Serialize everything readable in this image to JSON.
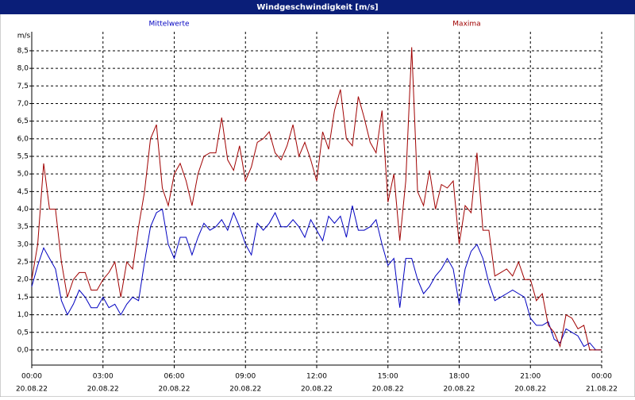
{
  "chart_data": {
    "type": "line",
    "title": "Windgeschwindigkeit [m/s]",
    "ylabel": "m/s",
    "x": [
      0,
      0.25,
      0.5,
      0.75,
      1,
      1.25,
      1.5,
      1.75,
      2,
      2.25,
      2.5,
      2.75,
      3,
      3.25,
      3.5,
      3.75,
      4,
      4.25,
      4.5,
      4.75,
      5,
      5.25,
      5.5,
      5.75,
      6,
      6.25,
      6.5,
      6.75,
      7,
      7.25,
      7.5,
      7.75,
      8,
      8.25,
      8.5,
      8.75,
      9,
      9.25,
      9.5,
      9.75,
      10,
      10.25,
      10.5,
      10.75,
      11,
      11.25,
      11.5,
      11.75,
      12,
      12.25,
      12.5,
      12.75,
      13,
      13.25,
      13.5,
      13.75,
      14,
      14.25,
      14.5,
      14.75,
      15,
      15.25,
      15.5,
      15.75,
      16,
      16.25,
      16.5,
      16.75,
      17,
      17.25,
      17.5,
      17.75,
      18,
      18.25,
      18.5,
      18.75,
      19,
      19.25,
      19.5,
      19.75,
      20,
      20.25,
      20.5,
      20.75,
      21,
      21.25,
      21.5,
      21.75,
      22,
      22.25,
      22.5,
      22.75,
      23,
      23.25,
      23.5,
      23.75,
      24
    ],
    "series": [
      {
        "name": "Mittelwerte",
        "color": "#0000c0",
        "values": [
          1.8,
          2.4,
          2.9,
          2.6,
          2.3,
          1.4,
          1.0,
          1.3,
          1.7,
          1.5,
          1.2,
          1.2,
          1.5,
          1.2,
          1.3,
          1.0,
          1.3,
          1.5,
          1.4,
          2.5,
          3.5,
          3.9,
          4.0,
          3.0,
          2.6,
          3.2,
          3.2,
          2.7,
          3.2,
          3.6,
          3.4,
          3.5,
          3.7,
          3.4,
          3.9,
          3.5,
          3.0,
          2.7,
          3.6,
          3.4,
          3.6,
          3.9,
          3.5,
          3.5,
          3.7,
          3.5,
          3.2,
          3.7,
          3.4,
          3.1,
          3.8,
          3.6,
          3.8,
          3.2,
          4.1,
          3.4,
          3.4,
          3.5,
          3.7,
          3.0,
          2.4,
          2.6,
          1.2,
          2.6,
          2.6,
          2.0,
          1.6,
          1.8,
          2.1,
          2.3,
          2.6,
          2.3,
          1.3,
          2.3,
          2.8,
          3.0,
          2.6,
          1.9,
          1.4,
          1.5,
          1.6,
          1.7,
          1.6,
          1.5,
          0.9,
          0.7,
          0.7,
          0.8,
          0.3,
          0.2,
          0.6,
          0.5,
          0.4,
          0.1,
          0.2,
          0.0,
          0.0
        ]
      },
      {
        "name": "Maxima",
        "color": "#a00000",
        "values": [
          2.0,
          3.0,
          5.3,
          4.0,
          4.0,
          2.5,
          1.5,
          2.0,
          2.2,
          2.2,
          1.7,
          1.7,
          2.0,
          2.2,
          2.5,
          1.5,
          2.5,
          2.3,
          3.5,
          4.5,
          6.0,
          6.4,
          4.6,
          4.1,
          5.0,
          5.3,
          4.8,
          4.1,
          5.0,
          5.5,
          5.6,
          5.6,
          6.6,
          5.4,
          5.1,
          5.8,
          4.8,
          5.2,
          5.9,
          6.0,
          6.2,
          5.6,
          5.4,
          5.8,
          6.4,
          5.5,
          5.9,
          5.4,
          4.8,
          6.2,
          5.7,
          6.8,
          7.4,
          6.0,
          5.8,
          7.2,
          6.6,
          5.9,
          5.6,
          6.8,
          4.2,
          5.0,
          3.1,
          4.8,
          8.6,
          4.5,
          4.1,
          5.1,
          4.0,
          4.7,
          4.6,
          4.8,
          3.0,
          4.1,
          3.9,
          5.6,
          3.4,
          3.4,
          2.1,
          2.2,
          2.3,
          2.1,
          2.5,
          2.0,
          2.0,
          1.4,
          1.6,
          0.7,
          0.5,
          0.1,
          1.0,
          0.9,
          0.6,
          0.7,
          0.0,
          0.0,
          0.0
        ]
      }
    ],
    "xlim": [
      0,
      24
    ],
    "xticks": [
      {
        "value": 0,
        "label": "00:00"
      },
      {
        "value": 3,
        "label": "03:00"
      },
      {
        "value": 6,
        "label": "06:00"
      },
      {
        "value": 9,
        "label": "09:00"
      },
      {
        "value": 12,
        "label": "12:00"
      },
      {
        "value": 15,
        "label": "15:00"
      },
      {
        "value": 18,
        "label": "18:00"
      },
      {
        "value": 21,
        "label": "21:00"
      },
      {
        "value": 24,
        "label": "00:00"
      }
    ],
    "xtick_dates": [
      "20.08.22",
      "20.08.22",
      "20.08.22",
      "20.08.22",
      "20.08.22",
      "20.08.22",
      "20.08.22",
      "20.08.22",
      "21.08.22"
    ],
    "ylim": [
      -0.43,
      9.04
    ],
    "yticks": [
      {
        "value": 0,
        "label": "0,0"
      },
      {
        "value": 0.5,
        "label": "0,5"
      },
      {
        "value": 1,
        "label": "1,0"
      },
      {
        "value": 1.5,
        "label": "1,5"
      },
      {
        "value": 2,
        "label": "2,0"
      },
      {
        "value": 2.5,
        "label": "2,5"
      },
      {
        "value": 3,
        "label": "3,0"
      },
      {
        "value": 3.5,
        "label": "3,5"
      },
      {
        "value": 4,
        "label": "4,0"
      },
      {
        "value": 4.5,
        "label": "4,5"
      },
      {
        "value": 5,
        "label": "5,0"
      },
      {
        "value": 5.5,
        "label": "5,5"
      },
      {
        "value": 6,
        "label": "6,0"
      },
      {
        "value": 6.5,
        "label": "6,5"
      },
      {
        "value": 7,
        "label": "7,0"
      },
      {
        "value": 7.5,
        "label": "7,5"
      },
      {
        "value": 8,
        "label": "8,0"
      },
      {
        "value": 8.5,
        "label": "8,5"
      }
    ],
    "grid": true
  }
}
